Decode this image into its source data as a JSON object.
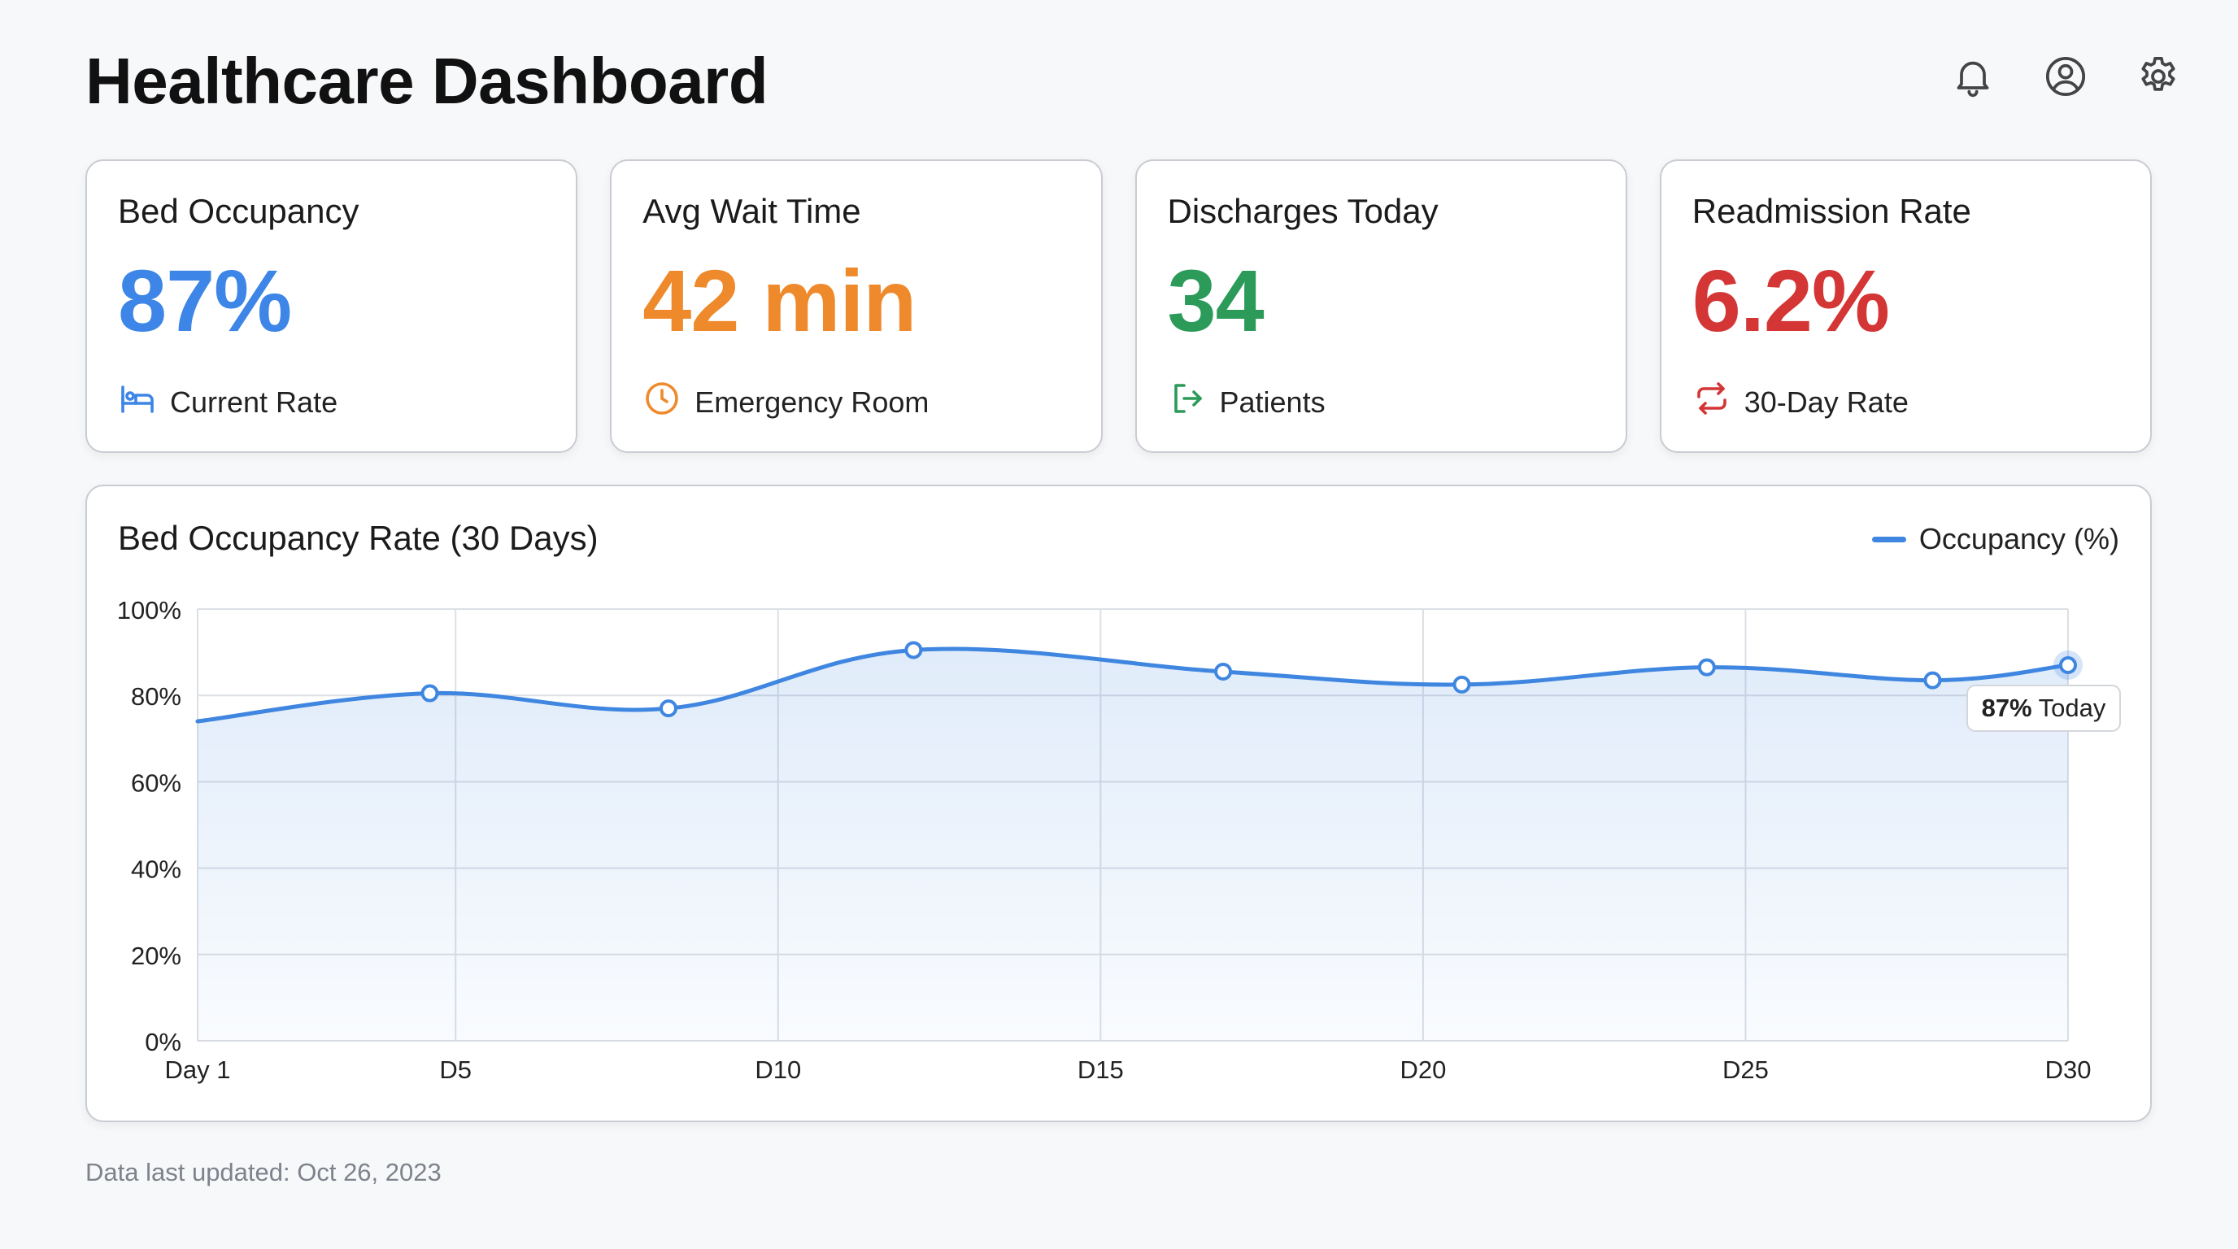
{
  "header": {
    "title": "Healthcare Dashboard",
    "icons": [
      "bell-icon",
      "user-circle-icon",
      "gear-icon"
    ]
  },
  "cards": [
    {
      "label": "Bed Occupancy",
      "value": "87%",
      "sub": "Current Rate",
      "icon": "bed-icon",
      "color": "#3d85e6"
    },
    {
      "label": "Avg Wait Time",
      "value": "42 min",
      "sub": "Emergency Room",
      "icon": "clock-icon",
      "color": "#ef8a2c"
    },
    {
      "label": "Discharges Today",
      "value": "34",
      "sub": "Patients",
      "icon": "exit-icon",
      "color": "#2c9a59"
    },
    {
      "label": "Readmission Rate",
      "value": "6.2%",
      "sub": "30-Day Rate",
      "icon": "repeat-icon",
      "color": "#d43535"
    }
  ],
  "chart": {
    "title": "Bed Occupancy Rate (30 Days)",
    "legend_label": "Occupancy (%)",
    "tooltip": {
      "value": "87%",
      "label": "Today"
    },
    "line_color": "#3f86e0"
  },
  "chart_data": {
    "type": "area",
    "title": "Bed Occupancy Rate (30 Days)",
    "xlabel": "",
    "ylabel": "",
    "x_ticks": [
      "Day 1",
      "D5",
      "D10",
      "D15",
      "D20",
      "D25",
      "D30"
    ],
    "x_tick_values": [
      1,
      5,
      10,
      15,
      20,
      25,
      30
    ],
    "y_ticks": [
      "0%",
      "20%",
      "40%",
      "60%",
      "80%",
      "100%"
    ],
    "y_tick_values": [
      0,
      20,
      40,
      60,
      80,
      100
    ],
    "xlim": [
      1,
      30
    ],
    "ylim": [
      0,
      100
    ],
    "grid": true,
    "legend_position": "top-right",
    "series": [
      {
        "name": "Occupancy (%)",
        "x": [
          1,
          4.6,
          8.3,
          12.1,
          16.9,
          20.6,
          24.4,
          27.9,
          30
        ],
        "values": [
          74,
          80.5,
          77,
          90.5,
          85.5,
          82.5,
          86.5,
          83.5,
          87
        ],
        "markers": [
          false,
          true,
          true,
          true,
          true,
          true,
          true,
          true,
          true
        ]
      }
    ]
  },
  "footer": {
    "text": "Data last updated: Oct 26, 2023"
  }
}
